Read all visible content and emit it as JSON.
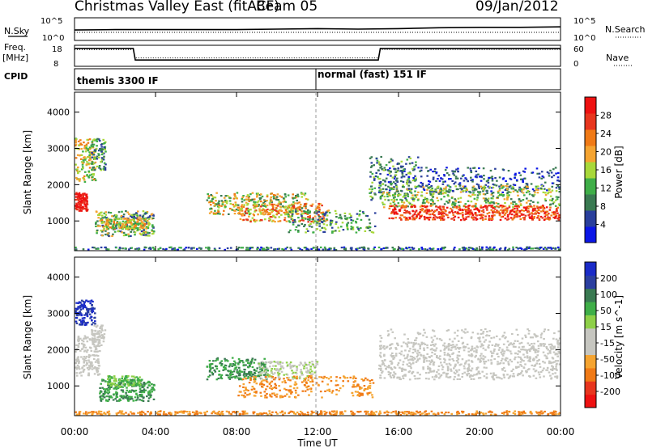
{
  "header": {
    "station": "Christmas Valley East (fitACF)",
    "beam": "Beam 05",
    "date": "09/Jan/2012"
  },
  "left_labels": {
    "nsky": "N.Sky",
    "freq_line1": "Freq.",
    "freq_line2": "[MHz]",
    "cpid": "CPID"
  },
  "right_labels": {
    "nsearch": "N.Search",
    "nave": "Nave"
  },
  "cpid_segments": [
    {
      "label": "themis 3300 IF"
    },
    {
      "label": "normal (fast) 151 IF"
    }
  ],
  "colors": {
    "scatter_purple": "#2b3fa0",
    "power_scale": [
      "#0b16e6",
      "#2a3f9c",
      "#3a7a52",
      "#3fae48",
      "#a8d83a",
      "#f5a431",
      "#f07a16",
      "#e8361e",
      "#ee1111"
    ],
    "velocity_scale": [
      "#ee1111",
      "#e8361e",
      "#f07a16",
      "#f5a431",
      "#c6c6c0",
      "#c6c6c0",
      "#8ed048",
      "#3fae48",
      "#3a7a52",
      "#2b3fa0",
      "#1a2bc8"
    ],
    "ground_scatter": "#c6c6c0"
  },
  "chart_data": [
    {
      "type": "line",
      "name": "noise-panel",
      "ylabel_left": "N.Sky",
      "ylabel_right": "N.Search",
      "yticks_left": [
        "10^5",
        "10^0"
      ],
      "yticks_right": [
        "10^5",
        "10^0"
      ],
      "x_range": [
        0,
        24
      ],
      "series": [
        {
          "name": "N.Sky",
          "x": [
            0,
            2,
            4,
            6,
            8,
            10,
            12,
            14,
            16,
            18,
            20,
            22,
            24
          ],
          "y": [
            2.3,
            2.4,
            2.4,
            2.4,
            2.4,
            2.5,
            2.6,
            2.5,
            2.6,
            2.8,
            2.9,
            2.9,
            3.0
          ]
        }
      ]
    },
    {
      "type": "line",
      "name": "freq-panel",
      "ylabel_left": "Freq. [MHz]",
      "ylabel_right": "Nave",
      "yticks_left": [
        "18",
        "8"
      ],
      "yticks_right": [
        "60",
        "0"
      ],
      "x_range": [
        0,
        24
      ],
      "series": [
        {
          "name": "Freq",
          "x": [
            0,
            0.1,
            2.9,
            3.0,
            15.0,
            15.1,
            24
          ],
          "y": [
            16.5,
            16.5,
            16.5,
            11,
            11,
            16.5,
            16.5
          ]
        },
        {
          "name": "Nave",
          "x": [
            0,
            2.9,
            3.0,
            15.0,
            15.1,
            24
          ],
          "y": [
            16,
            16,
            12,
            12,
            16,
            16
          ]
        }
      ]
    },
    {
      "type": "heatmap",
      "name": "power-panel",
      "ylabel": "Slant Range [km]",
      "yticks": [
        1000,
        2000,
        3000,
        4000
      ],
      "ylim": [
        180,
        4550
      ],
      "xlim": [
        0,
        24
      ],
      "colorbar_label": "Power [dB]",
      "colorbar_ticks": [
        4,
        8,
        12,
        16,
        20,
        24,
        28
      ],
      "colorbar_range": [
        0,
        30
      ]
    },
    {
      "type": "heatmap",
      "name": "velocity-panel",
      "ylabel": "Slant Range [km]",
      "yticks": [
        1000,
        2000,
        3000,
        4000
      ],
      "ylim": [
        180,
        4550
      ],
      "xlim": [
        0,
        24
      ],
      "colorbar_label": "Velocity [m s^-1]",
      "colorbar_ticks": [
        -200,
        -100,
        -50,
        -15,
        15,
        50,
        100,
        200
      ],
      "xticks": [
        "00:00",
        "04:00",
        "08:00",
        "12:00",
        "16:00",
        "20:00",
        "00:00"
      ],
      "xlabel": "Time UT"
    }
  ]
}
